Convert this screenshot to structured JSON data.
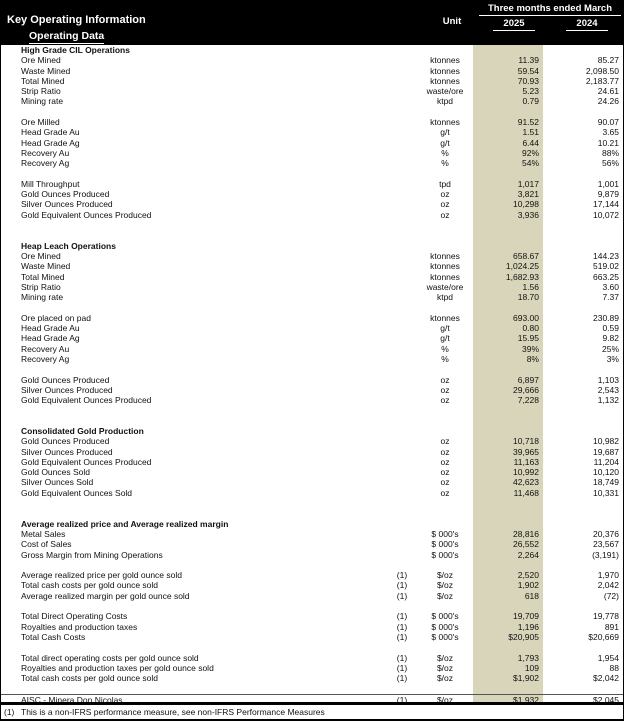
{
  "header": {
    "title": "Key Operating Information",
    "subtitle": "Operating Data",
    "unit_label": "Unit",
    "period_label": "Three months ended March",
    "year_2025": "2025",
    "year_2024": "2024"
  },
  "colors": {
    "accent_column": "#d9d5ba",
    "header_bg": "#000000",
    "header_text": "#ffffff"
  },
  "table": {
    "columns": [
      "label",
      "flag",
      "unit",
      "2025",
      "2024"
    ],
    "lines": [
      {
        "t": "s",
        "label": "High Grade CIL Operations"
      },
      {
        "t": "r",
        "label": "Ore Mined",
        "unit": "ktonnes",
        "a": "11.39",
        "b": "85.27"
      },
      {
        "t": "r",
        "label": "Waste Mined",
        "unit": "ktonnes",
        "a": "59.54",
        "b": "2,098.50"
      },
      {
        "t": "r",
        "label": "Total Mined",
        "unit": "ktonnes",
        "a": "70.93",
        "b": "2,183.77"
      },
      {
        "t": "r",
        "label": "Strip Ratio",
        "unit": "waste/ore",
        "a": "5.23",
        "b": "24.61"
      },
      {
        "t": "r",
        "label": "Mining rate",
        "unit": "ktpd",
        "a": "0.79",
        "b": "24.26"
      },
      {
        "t": "b"
      },
      {
        "t": "r",
        "label": "Ore Milled",
        "unit": "ktonnes",
        "a": "91.52",
        "b": "90.07"
      },
      {
        "t": "r",
        "label": "Head Grade Au",
        "unit": "g/t",
        "a": "1.51",
        "b": "3.65"
      },
      {
        "t": "r",
        "label": "Head Grade Ag",
        "unit": "g/t",
        "a": "6.44",
        "b": "10.21"
      },
      {
        "t": "r",
        "label": "Recovery Au",
        "unit": "%",
        "a": "92%",
        "b": "88%"
      },
      {
        "t": "r",
        "label": "Recovery Ag",
        "unit": "%",
        "a": "54%",
        "b": "56%"
      },
      {
        "t": "b"
      },
      {
        "t": "r",
        "label": "Mill Throughput",
        "unit": "tpd",
        "a": "1,017",
        "b": "1,001"
      },
      {
        "t": "r",
        "label": "Gold Ounces Produced",
        "unit": "oz",
        "a": "3,821",
        "b": "9,879"
      },
      {
        "t": "r",
        "label": "Silver Ounces Produced",
        "unit": "oz",
        "a": "10,298",
        "b": "17,144"
      },
      {
        "t": "r",
        "label": "Gold Equivalent Ounces Produced",
        "unit": "oz",
        "a": "3,936",
        "b": "10,072"
      },
      {
        "t": "b"
      },
      {
        "t": "b"
      },
      {
        "t": "s",
        "label": "Heap Leach Operations"
      },
      {
        "t": "r",
        "label": "Ore Mined",
        "unit": "ktonnes",
        "a": "658.67",
        "b": "144.23"
      },
      {
        "t": "r",
        "label": "Waste Mined",
        "unit": "ktonnes",
        "a": "1,024.25",
        "b": "519.02"
      },
      {
        "t": "r",
        "label": "Total Mined",
        "unit": "ktonnes",
        "a": "1,682.93",
        "b": "663.25"
      },
      {
        "t": "r",
        "label": "Strip Ratio",
        "unit": "waste/ore",
        "a": "1.56",
        "b": "3.60"
      },
      {
        "t": "r",
        "label": "Mining rate",
        "unit": "ktpd",
        "a": "18.70",
        "b": "7.37"
      },
      {
        "t": "b"
      },
      {
        "t": "r",
        "label": "Ore placed on pad",
        "unit": "ktonnes",
        "a": "693.00",
        "b": "230.89"
      },
      {
        "t": "r",
        "label": "Head Grade Au",
        "unit": "g/t",
        "a": "0.80",
        "b": "0.59"
      },
      {
        "t": "r",
        "label": "Head Grade Ag",
        "unit": "g/t",
        "a": "15.95",
        "b": "9.82"
      },
      {
        "t": "r",
        "label": "Recovery Au",
        "unit": "%",
        "a": "39%",
        "b": "25%"
      },
      {
        "t": "r",
        "label": "Recovery Ag",
        "unit": "%",
        "a": "8%",
        "b": "3%"
      },
      {
        "t": "b"
      },
      {
        "t": "r",
        "label": "Gold Ounces Produced",
        "unit": "oz",
        "a": "6,897",
        "b": "1,103"
      },
      {
        "t": "r",
        "label": "Silver Ounces Produced",
        "unit": "oz",
        "a": "29,666",
        "b": "2,543"
      },
      {
        "t": "r",
        "label": "Gold Equivalent Ounces Produced",
        "unit": "oz",
        "a": "7,228",
        "b": "1,132"
      },
      {
        "t": "b"
      },
      {
        "t": "b"
      },
      {
        "t": "s",
        "label": "Consolidated Gold Production"
      },
      {
        "t": "r",
        "label": "Gold Ounces Produced",
        "unit": "oz",
        "a": "10,718",
        "b": "10,982"
      },
      {
        "t": "r",
        "label": "Silver Ounces Produced",
        "unit": "oz",
        "a": "39,965",
        "b": "19,687"
      },
      {
        "t": "r",
        "label": "Gold Equivalent Ounces Produced",
        "unit": "oz",
        "a": "11,163",
        "b": "11,204"
      },
      {
        "t": "r",
        "label": "Gold Ounces Sold",
        "unit": "oz",
        "a": "10,992",
        "b": "10,120"
      },
      {
        "t": "r",
        "label": "Silver Ounces Sold",
        "unit": "oz",
        "a": "42,623",
        "b": "18,749"
      },
      {
        "t": "r",
        "label": "Gold Equivalent Ounces Sold",
        "unit": "oz",
        "a": "11,468",
        "b": "10,331"
      },
      {
        "t": "b"
      },
      {
        "t": "b"
      },
      {
        "t": "s",
        "label": "Average realized price and Average realized margin"
      },
      {
        "t": "r",
        "label": "Metal Sales",
        "unit": "$ 000's",
        "a": "28,816",
        "b": "20,376"
      },
      {
        "t": "r",
        "label": "Cost of Sales",
        "unit": "$ 000's",
        "a": "26,552",
        "b": "23,567"
      },
      {
        "t": "r",
        "label": "Gross Margin from Mining Operations",
        "unit": "$ 000's",
        "a": "2,264",
        "b": "(3,191)"
      },
      {
        "t": "b"
      },
      {
        "t": "r",
        "label": "Average realized price per gold ounce sold",
        "flag": "(1)",
        "unit": "$/oz",
        "a": "2,520",
        "b": "1,970"
      },
      {
        "t": "r",
        "label": "Total cash costs per gold ounce sold",
        "flag": "(1)",
        "unit": "$/oz",
        "a": "1,902",
        "b": "2,042"
      },
      {
        "t": "r",
        "label": "Average realized margin per gold ounce sold",
        "flag": "(1)",
        "unit": "$/oz",
        "a": "618",
        "b": "(72)"
      },
      {
        "t": "b"
      },
      {
        "t": "r",
        "label": "Total Direct Operating Costs",
        "flag": "(1)",
        "unit": "$ 000's",
        "a": "19,709",
        "b": "19,778"
      },
      {
        "t": "r",
        "label": "Royalties and production taxes",
        "flag": "(1)",
        "unit": "$ 000's",
        "a": "1,196",
        "b": "891"
      },
      {
        "t": "r",
        "label": "Total Cash Costs",
        "flag": "(1)",
        "unit": "$ 000's",
        "a": "$20,905",
        "b": "$20,669"
      },
      {
        "t": "b"
      },
      {
        "t": "r",
        "label": "Total direct operating costs per gold ounce sold",
        "flag": "(1)",
        "unit": "$/oz",
        "a": "1,793",
        "b": "1,954"
      },
      {
        "t": "r",
        "label": "Royalties and production taxes per gold ounce sold",
        "flag": "(1)",
        "unit": "$/oz",
        "a": "109",
        "b": "88"
      },
      {
        "t": "r",
        "label": "Total cash costs per gold ounce sold",
        "flag": "(1)",
        "unit": "$/oz",
        "a": "$1,902",
        "b": "$2,042"
      },
      {
        "t": "b"
      },
      {
        "t": "r",
        "label": "AISC - Minera Don Nicolas",
        "flag": "(1)",
        "unit": "$/oz",
        "a": "$1,932",
        "b": "$2,045",
        "top": true
      }
    ]
  },
  "footnote": {
    "marker": "(1)",
    "text": "This is a non-IFRS performance measure, see non-IFRS Performance Measures"
  }
}
